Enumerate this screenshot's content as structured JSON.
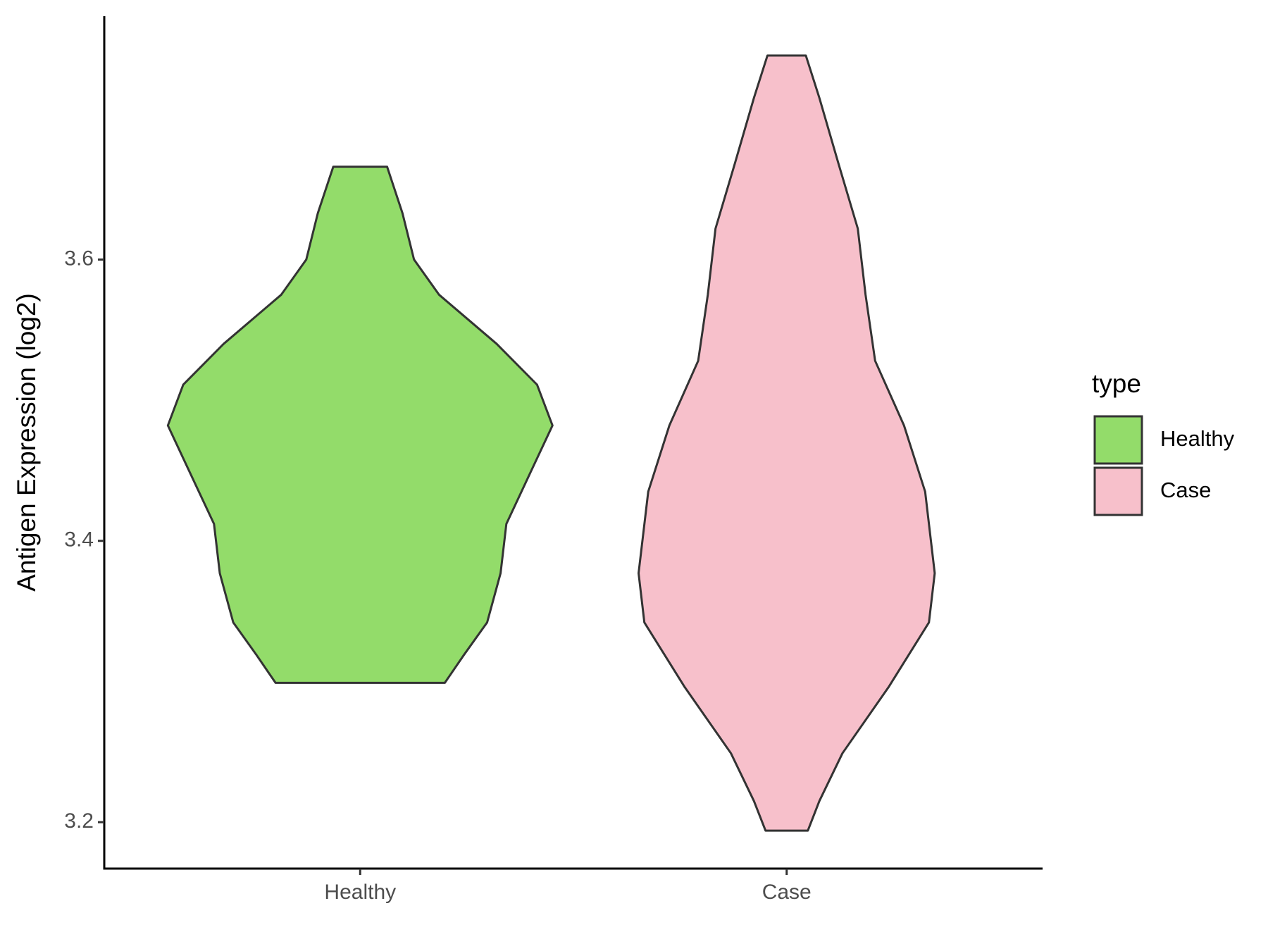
{
  "chart_data": {
    "type": "violin",
    "y_label": "Antigen Expression (log2)",
    "categories": [
      "Healthy",
      "Case"
    ],
    "legend_title": "type",
    "legend_position": "right",
    "ylim": [
      3.167,
      3.773
    ],
    "yticks": [
      3.2,
      3.4,
      3.6
    ],
    "grid": false,
    "series": [
      {
        "name": "Healthy",
        "color": "#93dc6a",
        "y": [
          3.666,
          3.633,
          3.6,
          3.575,
          3.54,
          3.511,
          3.482,
          3.447,
          3.412,
          3.377,
          3.342,
          3.319,
          3.299
        ],
        "density": [
          0.14,
          0.22,
          0.28,
          0.41,
          0.71,
          0.92,
          1.0,
          0.88,
          0.76,
          0.73,
          0.66,
          0.54,
          0.44
        ]
      },
      {
        "name": "Case",
        "color": "#f7c0cb",
        "y": [
          3.745,
          3.715,
          3.668,
          3.622,
          3.575,
          3.528,
          3.482,
          3.435,
          3.377,
          3.342,
          3.296,
          3.249,
          3.215,
          3.194
        ],
        "density": [
          0.1,
          0.17,
          0.27,
          0.37,
          0.41,
          0.46,
          0.61,
          0.72,
          0.77,
          0.74,
          0.53,
          0.29,
          0.17,
          0.11
        ]
      }
    ]
  }
}
